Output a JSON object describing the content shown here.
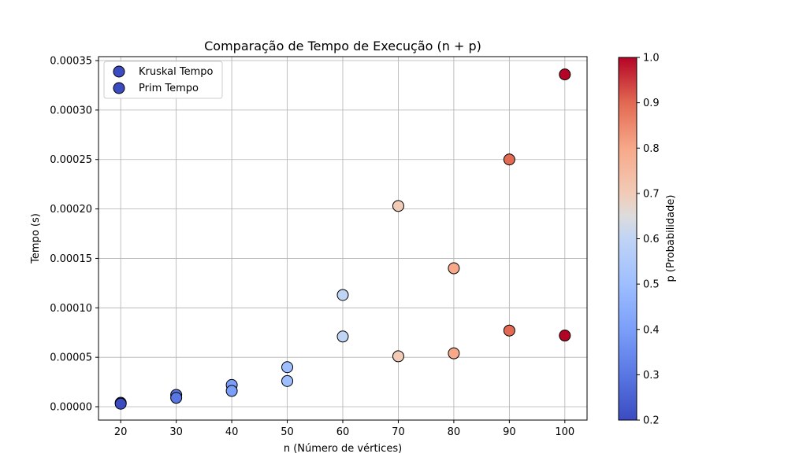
{
  "chart_data": {
    "type": "scatter",
    "title": "Comparação de Tempo de Execução (n + p)",
    "xlabel": "n (Número de vértices)",
    "ylabel": "Tempo (s)",
    "xlim": [
      16,
      104
    ],
    "ylim": [
      -1.35e-05,
      0.000354
    ],
    "xticks": [
      20,
      30,
      40,
      50,
      60,
      70,
      80,
      90,
      100
    ],
    "xtick_labels": [
      "20",
      "30",
      "40",
      "50",
      "60",
      "70",
      "80",
      "90",
      "100"
    ],
    "yticks": [
      0,
      5e-05,
      0.0001,
      0.00015,
      0.0002,
      0.00025,
      0.0003,
      0.00035
    ],
    "ytick_labels": [
      "0.00000",
      "0.00005",
      "0.00010",
      "0.00015",
      "0.00020",
      "0.00025",
      "0.00030",
      "0.00035"
    ],
    "grid": true,
    "legend_position": "top-left",
    "colormap": "coolwarm",
    "colorbar": {
      "label": "p (Probabilidade)",
      "range": [
        0.2,
        1.0
      ],
      "ticks": [
        0.2,
        0.3,
        0.4,
        0.5,
        0.6,
        0.7,
        0.8,
        0.9,
        1.0
      ],
      "tick_labels": [
        "0.2",
        "0.3",
        "0.4",
        "0.5",
        "0.6",
        "0.7",
        "0.8",
        "0.9",
        "1.0"
      ]
    },
    "series": [
      {
        "name": "Kruskal Tempo",
        "x": [
          20,
          30,
          40,
          50,
          60,
          70,
          80,
          90,
          100
        ],
        "y": [
          4e-06,
          1.2e-05,
          2.2e-05,
          4e-05,
          0.000113,
          0.000203,
          0.00014,
          0.00025,
          0.000336
        ],
        "p": [
          0.2,
          0.3,
          0.4,
          0.5,
          0.6,
          0.7,
          0.8,
          0.9,
          1.0
        ]
      },
      {
        "name": "Prim Tempo",
        "x": [
          20,
          30,
          40,
          50,
          60,
          70,
          80,
          90,
          100
        ],
        "y": [
          3e-06,
          9e-06,
          1.6e-05,
          2.6e-05,
          7.1e-05,
          5.1e-05,
          5.4e-05,
          7.7e-05,
          7.2e-05
        ],
        "p": [
          0.2,
          0.3,
          0.4,
          0.5,
          0.6,
          0.7,
          0.8,
          0.9,
          1.0
        ]
      }
    ],
    "legend_marker_color": "#3b4cc0"
  }
}
